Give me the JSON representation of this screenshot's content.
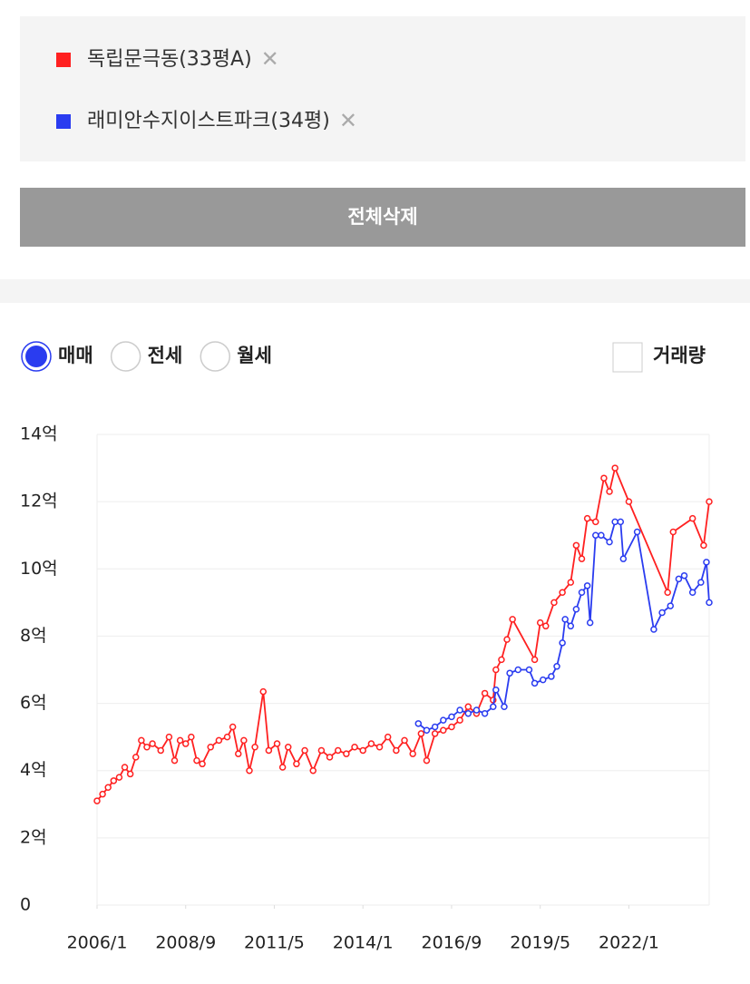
{
  "legend_close": "✕",
  "button": "전체삭제",
  "radios": [
    {
      "label": "매매",
      "checked": true
    },
    {
      "label": "전세",
      "checked": false
    },
    {
      "label": "월세",
      "checked": false
    }
  ],
  "checkbox": {
    "label": "거래량",
    "checked": false
  },
  "chart_data": {
    "type": "line",
    "xlim": [
      "2006/1",
      "2024/6"
    ],
    "xticks": [
      "2006/1",
      "2008/9",
      "2011/5",
      "2014/1",
      "2016/9",
      "2019/5",
      "2022/1"
    ],
    "ylim": [
      0,
      14
    ],
    "yticks": [
      0,
      {
        "value": 2,
        "label": "2억"
      },
      {
        "value": 4,
        "label": "4억"
      },
      {
        "value": 6,
        "label": "6억"
      },
      {
        "value": 8,
        "label": "8억"
      },
      {
        "value": 10,
        "label": "10억"
      },
      {
        "value": 12,
        "label": "12억"
      },
      {
        "value": 14,
        "label": "14억"
      }
    ],
    "grid": true,
    "series": [
      {
        "name": "독립문극동(33평A)",
        "color": "#ff2020",
        "x": [
          "2006/1",
          "2006/3",
          "2006/5",
          "2006/7",
          "2006/9",
          "2006/11",
          "2007/1",
          "2007/3",
          "2007/5",
          "2007/7",
          "2007/9",
          "2007/12",
          "2008/3",
          "2008/5",
          "2008/7",
          "2008/9",
          "2008/11",
          "2009/1",
          "2009/3",
          "2009/6",
          "2009/9",
          "2009/12",
          "2010/2",
          "2010/4",
          "2010/6",
          "2010/8",
          "2010/10",
          "2011/1",
          "2011/3",
          "2011/6",
          "2011/8",
          "2011/10",
          "2012/1",
          "2012/4",
          "2012/7",
          "2012/10",
          "2013/1",
          "2013/4",
          "2013/7",
          "2013/10",
          "2014/1",
          "2014/4",
          "2014/7",
          "2014/10",
          "2015/1",
          "2015/4",
          "2015/7",
          "2015/10",
          "2015/12",
          "2016/3",
          "2016/6",
          "2016/9",
          "2016/12",
          "2017/3",
          "2017/6",
          "2017/9",
          "2017/12",
          "2018/1",
          "2018/3",
          "2018/5",
          "2018/7",
          "2019/3",
          "2019/5",
          "2019/7",
          "2019/10",
          "2020/1",
          "2020/4",
          "2020/6",
          "2020/8",
          "2020/10",
          "2021/1",
          "2021/4",
          "2021/6",
          "2021/8",
          "2022/1",
          "2023/3",
          "2023/5",
          "2023/12",
          "2024/4",
          "2024/6"
        ],
        "values": [
          3.1,
          3.3,
          3.5,
          3.7,
          3.8,
          4.1,
          3.9,
          4.4,
          4.9,
          4.7,
          4.8,
          4.6,
          5.0,
          4.3,
          4.9,
          4.8,
          5.0,
          4.3,
          4.2,
          4.7,
          4.9,
          5.0,
          5.3,
          4.5,
          4.9,
          4.0,
          4.7,
          6.35,
          4.6,
          4.8,
          4.1,
          4.7,
          4.2,
          4.6,
          4.0,
          4.6,
          4.4,
          4.6,
          4.5,
          4.7,
          4.6,
          4.8,
          4.7,
          5.0,
          4.6,
          4.9,
          4.5,
          5.1,
          4.3,
          5.1,
          5.2,
          5.3,
          5.5,
          5.9,
          5.7,
          6.3,
          6.1,
          7.0,
          7.3,
          7.9,
          8.5,
          7.3,
          8.4,
          8.3,
          9.0,
          9.3,
          9.6,
          10.7,
          10.3,
          11.5,
          11.4,
          12.7,
          12.3,
          13.0,
          12.0,
          9.3,
          11.1,
          11.5,
          10.7,
          12.0
        ]
      },
      {
        "name": "래미안수지이스트파크(34평)",
        "color": "#2a3cf0",
        "x": [
          "2015/9",
          "2015/12",
          "2016/3",
          "2016/6",
          "2016/9",
          "2016/12",
          "2017/3",
          "2017/6",
          "2017/9",
          "2017/12",
          "2018/1",
          "2018/4",
          "2018/6",
          "2018/9",
          "2019/1",
          "2019/3",
          "2019/6",
          "2019/9",
          "2019/11",
          "2020/1",
          "2020/2",
          "2020/4",
          "2020/6",
          "2020/8",
          "2020/10",
          "2020/11",
          "2021/1",
          "2021/3",
          "2021/6",
          "2021/8",
          "2021/10",
          "2021/11",
          "2022/4",
          "2022/10",
          "2023/1",
          "2023/4",
          "2023/7",
          "2023/9",
          "2023/12",
          "2024/3",
          "2024/5",
          "2024/6"
        ],
        "values": [
          5.4,
          5.2,
          5.3,
          5.5,
          5.6,
          5.8,
          5.7,
          5.8,
          5.7,
          5.9,
          6.4,
          5.9,
          6.9,
          7.0,
          7.0,
          6.6,
          6.7,
          6.8,
          7.1,
          7.8,
          8.5,
          8.3,
          8.8,
          9.3,
          9.5,
          8.4,
          11.0,
          11.0,
          10.8,
          11.4,
          11.4,
          10.3,
          11.1,
          8.2,
          8.7,
          8.9,
          9.7,
          9.8,
          9.3,
          9.6,
          10.2,
          9.0
        ]
      }
    ]
  }
}
